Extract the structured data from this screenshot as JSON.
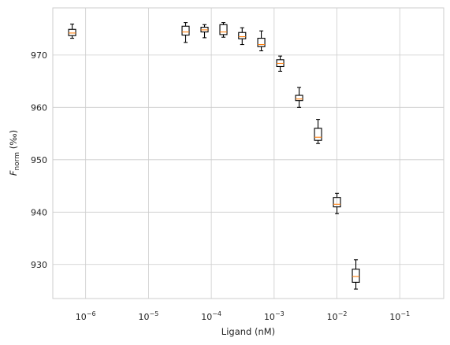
{
  "chart_data": {
    "type": "boxplot",
    "title": "",
    "xlabel": "Ligand (nM)",
    "ylabel": "F_norm (‰)",
    "ylabel_base": "F",
    "ylabel_sub": "norm",
    "ylabel_unit": " (‰)",
    "xscale": "log",
    "xlim": [
      3e-07,
      0.5
    ],
    "ylim": [
      923.5,
      979
    ],
    "grid": true,
    "x_ticks": [
      {
        "value": 1e-06,
        "exp": "−6"
      },
      {
        "value": 1e-05,
        "exp": "−5"
      },
      {
        "value": 0.0001,
        "exp": "−4"
      },
      {
        "value": 0.001,
        "exp": "−3"
      },
      {
        "value": 0.01,
        "exp": "−2"
      },
      {
        "value": 0.1,
        "exp": "−1"
      }
    ],
    "y_ticks": [
      930,
      940,
      950,
      960,
      970
    ],
    "colors": {
      "box": "#000000",
      "median": "#ff7f0e",
      "grid": "#cccccc"
    },
    "boxes": [
      {
        "x": 6.1e-07,
        "whislo": 973.2,
        "q1": 973.7,
        "med": 974.2,
        "q3": 974.9,
        "whishi": 975.9
      },
      {
        "x": 3.9e-05,
        "whislo": 972.4,
        "q1": 973.8,
        "med": 974.4,
        "q3": 975.5,
        "whishi": 976.2
      },
      {
        "x": 7.8e-05,
        "whislo": 973.3,
        "q1": 974.4,
        "med": 974.8,
        "q3": 975.3,
        "whishi": 975.8
      },
      {
        "x": 0.000156,
        "whislo": 973.4,
        "q1": 973.9,
        "med": 974.4,
        "q3": 975.8,
        "whishi": 976.2
      },
      {
        "x": 0.00031,
        "whislo": 972.0,
        "q1": 973.1,
        "med": 973.5,
        "q3": 974.3,
        "whishi": 975.2
      },
      {
        "x": 0.000625,
        "whislo": 970.8,
        "q1": 971.6,
        "med": 972.0,
        "q3": 973.2,
        "whishi": 974.6
      },
      {
        "x": 0.00125,
        "whislo": 966.9,
        "q1": 967.8,
        "med": 968.4,
        "q3": 969.1,
        "whishi": 969.8
      },
      {
        "x": 0.0025,
        "whislo": 960.0,
        "q1": 961.3,
        "med": 961.6,
        "q3": 962.3,
        "whishi": 963.8
      },
      {
        "x": 0.005,
        "whislo": 953.1,
        "q1": 953.7,
        "med": 954.3,
        "q3": 956.0,
        "whishi": 957.7
      },
      {
        "x": 0.01,
        "whislo": 939.7,
        "q1": 941.0,
        "med": 941.5,
        "q3": 942.8,
        "whishi": 943.6
      },
      {
        "x": 0.02,
        "whislo": 925.3,
        "q1": 926.6,
        "med": 927.7,
        "q3": 929.1,
        "whishi": 930.9
      }
    ]
  }
}
